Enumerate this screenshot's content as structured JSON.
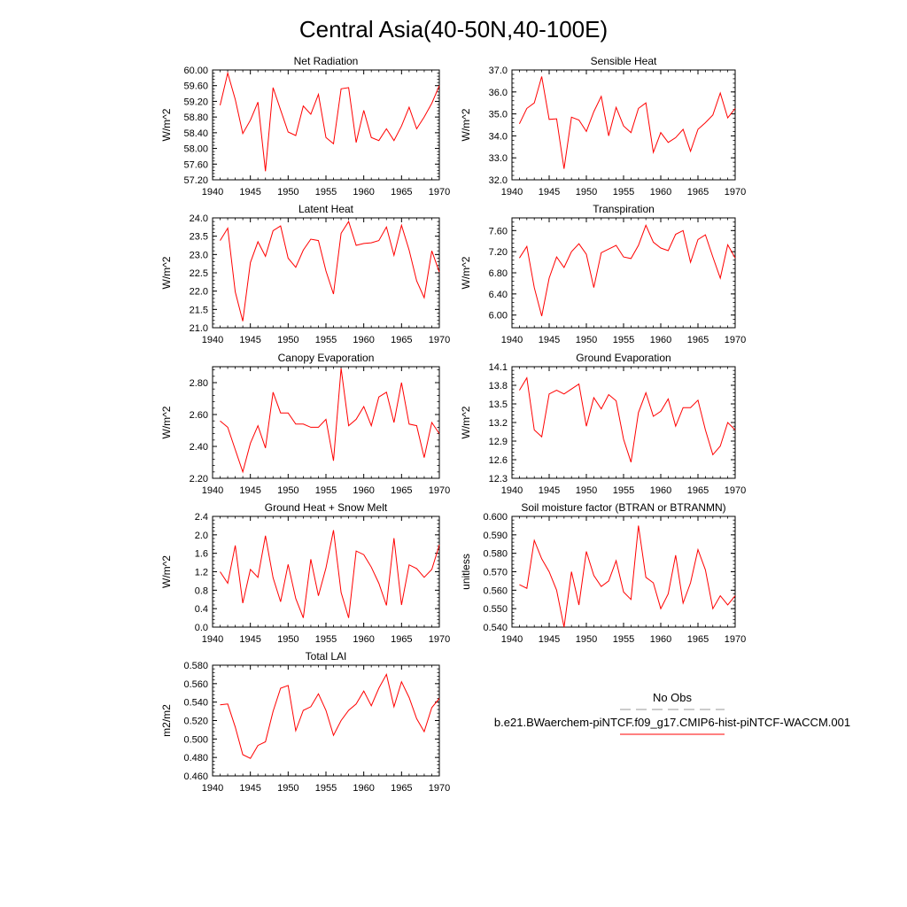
{
  "page_title": "Central Asia(40-50N,40-100E)",
  "legend": {
    "obs_label": "No Obs",
    "model_label": "b.e21.BWaerchem-piNTCF.f09_g17.CMIP6-hist-piNTCF-WACCM.001",
    "obs_color": "#999999",
    "model_color": "#ff0000"
  },
  "series_color": "#ff0000",
  "chart_data": [
    {
      "type": "line",
      "title": "Net Radiation",
      "ylabel": "W/m^2",
      "xlim": [
        1940,
        1970
      ],
      "ylim": [
        57.2,
        60.0
      ],
      "xticks": [
        "1940",
        "1945",
        "1950",
        "1955",
        "1960",
        "1965",
        "1970"
      ],
      "yticks": [
        "57.20",
        "57.60",
        "58.00",
        "58.40",
        "58.80",
        "59.20",
        "59.60",
        "60.00"
      ],
      "series": [
        {
          "x": [
            1941,
            1942,
            1943,
            1944,
            1945,
            1946,
            1947,
            1948,
            1949,
            1950,
            1951,
            1952,
            1953,
            1954,
            1955,
            1956,
            1957,
            1958,
            1959,
            1960,
            1961,
            1962,
            1963,
            1964,
            1965,
            1966,
            1967,
            1968,
            1969,
            1970
          ],
          "values": [
            59.1,
            59.92,
            59.25,
            58.38,
            58.72,
            59.18,
            57.42,
            59.55,
            58.98,
            58.42,
            58.33,
            59.08,
            58.87,
            59.38,
            58.28,
            58.12,
            59.52,
            59.55,
            58.15,
            58.97,
            58.28,
            58.2,
            58.5,
            58.2,
            58.57,
            59.05,
            58.5,
            58.8,
            59.15,
            59.6
          ]
        }
      ]
    },
    {
      "type": "line",
      "title": "Sensible Heat",
      "ylabel": "W/m^2",
      "xlim": [
        1940,
        1970
      ],
      "ylim": [
        32.0,
        37.0
      ],
      "xticks": [
        "1940",
        "1945",
        "1950",
        "1955",
        "1960",
        "1965",
        "1970"
      ],
      "yticks": [
        "32.0",
        "33.0",
        "34.0",
        "35.0",
        "36.0",
        "37.0"
      ],
      "series": [
        {
          "x": [
            1941,
            1942,
            1943,
            1944,
            1945,
            1946,
            1947,
            1948,
            1949,
            1950,
            1951,
            1952,
            1953,
            1954,
            1955,
            1956,
            1957,
            1958,
            1959,
            1960,
            1961,
            1962,
            1963,
            1964,
            1965,
            1966,
            1967,
            1968,
            1969,
            1970
          ],
          "values": [
            34.55,
            35.25,
            35.5,
            36.7,
            34.75,
            34.78,
            32.5,
            34.85,
            34.72,
            34.2,
            35.1,
            35.8,
            34.0,
            35.3,
            34.45,
            34.15,
            35.25,
            35.5,
            33.25,
            34.15,
            33.7,
            33.92,
            34.3,
            33.3,
            34.3,
            34.6,
            34.95,
            35.95,
            34.82,
            35.25
          ]
        }
      ]
    },
    {
      "type": "line",
      "title": "Latent Heat",
      "ylabel": "W/m^2",
      "xlim": [
        1940,
        1970
      ],
      "ylim": [
        21.0,
        24.0
      ],
      "xticks": [
        "1940",
        "1945",
        "1950",
        "1955",
        "1960",
        "1965",
        "1970"
      ],
      "yticks": [
        "21.0",
        "21.5",
        "22.0",
        "22.5",
        "23.0",
        "23.5",
        "24.0"
      ],
      "series": [
        {
          "x": [
            1941,
            1942,
            1943,
            1944,
            1945,
            1946,
            1947,
            1948,
            1949,
            1950,
            1951,
            1952,
            1953,
            1954,
            1955,
            1956,
            1957,
            1958,
            1959,
            1960,
            1961,
            1962,
            1963,
            1964,
            1965,
            1966,
            1967,
            1968,
            1969,
            1970
          ],
          "values": [
            23.38,
            23.72,
            21.98,
            21.18,
            22.78,
            23.35,
            22.95,
            23.65,
            23.78,
            22.9,
            22.65,
            23.12,
            23.42,
            23.38,
            22.55,
            21.92,
            23.58,
            23.9,
            23.25,
            23.3,
            23.32,
            23.38,
            23.75,
            22.98,
            23.8,
            23.12,
            22.28,
            21.82,
            23.1,
            22.52
          ]
        }
      ]
    },
    {
      "type": "line",
      "title": "Transpiration",
      "ylabel": "W/m^2",
      "xlim": [
        1940,
        1970
      ],
      "ylim": [
        5.76,
        7.84
      ],
      "xticks": [
        "1940",
        "1945",
        "1950",
        "1955",
        "1960",
        "1965",
        "1970"
      ],
      "yticks": [
        "6.00",
        "6.40",
        "6.80",
        "7.20",
        "7.60"
      ],
      "series": [
        {
          "x": [
            1941,
            1942,
            1943,
            1944,
            1945,
            1946,
            1947,
            1948,
            1949,
            1950,
            1951,
            1952,
            1953,
            1954,
            1955,
            1956,
            1957,
            1958,
            1959,
            1960,
            1961,
            1962,
            1963,
            1964,
            1965,
            1966,
            1967,
            1968,
            1969,
            1970
          ],
          "values": [
            7.08,
            7.3,
            6.52,
            5.98,
            6.7,
            7.1,
            6.9,
            7.2,
            7.35,
            7.15,
            6.52,
            7.18,
            7.25,
            7.32,
            7.1,
            7.07,
            7.32,
            7.7,
            7.38,
            7.27,
            7.22,
            7.53,
            7.6,
            7.0,
            7.43,
            7.52,
            7.1,
            6.7,
            7.33,
            7.08
          ]
        }
      ]
    },
    {
      "type": "line",
      "title": "Canopy Evaporation",
      "ylabel": "W/m^2",
      "xlim": [
        1940,
        1970
      ],
      "ylim": [
        2.2,
        2.9
      ],
      "xticks": [
        "1940",
        "1945",
        "1950",
        "1955",
        "1960",
        "1965",
        "1970"
      ],
      "yticks": [
        "2.20",
        "2.40",
        "2.60",
        "2.80"
      ],
      "series": [
        {
          "x": [
            1941,
            1942,
            1943,
            1944,
            1945,
            1946,
            1947,
            1948,
            1949,
            1950,
            1951,
            1952,
            1953,
            1954,
            1955,
            1956,
            1957,
            1958,
            1959,
            1960,
            1961,
            1962,
            1963,
            1964,
            1965,
            1966,
            1967,
            1968,
            1969,
            1970
          ],
          "values": [
            2.56,
            2.52,
            2.38,
            2.24,
            2.42,
            2.53,
            2.39,
            2.74,
            2.61,
            2.61,
            2.54,
            2.54,
            2.52,
            2.52,
            2.57,
            2.31,
            2.89,
            2.53,
            2.57,
            2.65,
            2.53,
            2.71,
            2.74,
            2.55,
            2.8,
            2.54,
            2.53,
            2.33,
            2.55,
            2.48
          ]
        }
      ]
    },
    {
      "type": "line",
      "title": "Ground Evaporation",
      "ylabel": "W/m^2",
      "xlim": [
        1940,
        1970
      ],
      "ylim": [
        12.3,
        14.1
      ],
      "xticks": [
        "1940",
        "1945",
        "1950",
        "1955",
        "1960",
        "1965",
        "1970"
      ],
      "yticks": [
        "12.3",
        "12.6",
        "12.9",
        "13.2",
        "13.5",
        "13.8",
        "14.1"
      ],
      "series": [
        {
          "x": [
            1941,
            1942,
            1943,
            1944,
            1945,
            1946,
            1947,
            1948,
            1949,
            1950,
            1951,
            1952,
            1953,
            1954,
            1955,
            1956,
            1957,
            1958,
            1959,
            1960,
            1961,
            1962,
            1963,
            1964,
            1965,
            1966,
            1967,
            1968,
            1969,
            1970
          ],
          "values": [
            13.72,
            13.92,
            13.08,
            12.97,
            13.66,
            13.72,
            13.66,
            13.74,
            13.82,
            13.14,
            13.6,
            13.42,
            13.65,
            13.55,
            12.93,
            12.56,
            13.36,
            13.68,
            13.3,
            13.38,
            13.58,
            13.14,
            13.44,
            13.44,
            13.56,
            13.08,
            12.68,
            12.82,
            13.2,
            13.08
          ]
        }
      ]
    },
    {
      "type": "line",
      "title": "Ground Heat + Snow Melt",
      "ylabel": "W/m^2",
      "xlim": [
        1940,
        1970
      ],
      "ylim": [
        0.0,
        2.4
      ],
      "xticks": [
        "1940",
        "1945",
        "1950",
        "1955",
        "1960",
        "1965",
        "1970"
      ],
      "yticks": [
        "0.0",
        "0.4",
        "0.8",
        "1.2",
        "1.6",
        "2.0",
        "2.4"
      ],
      "series": [
        {
          "x": [
            1941,
            1942,
            1943,
            1944,
            1945,
            1946,
            1947,
            1948,
            1949,
            1950,
            1951,
            1952,
            1953,
            1954,
            1955,
            1956,
            1957,
            1958,
            1959,
            1960,
            1961,
            1962,
            1963,
            1964,
            1965,
            1966,
            1967,
            1968,
            1969,
            1970
          ],
          "values": [
            1.2,
            0.95,
            1.77,
            0.52,
            1.25,
            1.08,
            1.98,
            1.07,
            0.55,
            1.36,
            0.62,
            0.2,
            1.47,
            0.68,
            1.28,
            2.1,
            0.75,
            0.2,
            1.65,
            1.57,
            1.3,
            0.95,
            0.47,
            1.93,
            0.48,
            1.35,
            1.27,
            1.08,
            1.25,
            1.78
          ]
        }
      ]
    },
    {
      "type": "line",
      "title": "Soil moisture factor (BTRAN or BTRANMN)",
      "ylabel": "unitless",
      "xlim": [
        1940,
        1970
      ],
      "ylim": [
        0.54,
        0.6
      ],
      "xticks": [
        "1940",
        "1945",
        "1950",
        "1955",
        "1960",
        "1965",
        "1970"
      ],
      "yticks": [
        "0.540",
        "0.550",
        "0.560",
        "0.570",
        "0.580",
        "0.590",
        "0.600"
      ],
      "series": [
        {
          "x": [
            1941,
            1942,
            1943,
            1944,
            1945,
            1946,
            1947,
            1948,
            1949,
            1950,
            1951,
            1952,
            1953,
            1954,
            1955,
            1956,
            1957,
            1958,
            1959,
            1960,
            1961,
            1962,
            1963,
            1964,
            1965,
            1966,
            1967,
            1968,
            1969,
            1970
          ],
          "values": [
            0.563,
            0.561,
            0.587,
            0.577,
            0.57,
            0.56,
            0.54,
            0.57,
            0.552,
            0.581,
            0.568,
            0.562,
            0.565,
            0.576,
            0.559,
            0.555,
            0.595,
            0.567,
            0.564,
            0.55,
            0.558,
            0.579,
            0.553,
            0.564,
            0.582,
            0.571,
            0.55,
            0.557,
            0.552,
            0.557
          ]
        }
      ]
    },
    {
      "type": "line",
      "title": "Total LAI",
      "ylabel": "m2/m2",
      "xlim": [
        1940,
        1970
      ],
      "ylim": [
        0.46,
        0.58
      ],
      "xticks": [
        "1940",
        "1945",
        "1950",
        "1955",
        "1960",
        "1965",
        "1970"
      ],
      "yticks": [
        "0.460",
        "0.480",
        "0.500",
        "0.520",
        "0.540",
        "0.560",
        "0.580"
      ],
      "series": [
        {
          "x": [
            1941,
            1942,
            1943,
            1944,
            1945,
            1946,
            1947,
            1948,
            1949,
            1950,
            1951,
            1952,
            1953,
            1954,
            1955,
            1956,
            1957,
            1958,
            1959,
            1960,
            1961,
            1962,
            1963,
            1964,
            1965,
            1966,
            1967,
            1968,
            1969,
            1970
          ],
          "values": [
            0.537,
            0.538,
            0.513,
            0.483,
            0.479,
            0.493,
            0.497,
            0.53,
            0.555,
            0.558,
            0.509,
            0.531,
            0.535,
            0.549,
            0.531,
            0.504,
            0.52,
            0.531,
            0.538,
            0.552,
            0.536,
            0.555,
            0.57,
            0.535,
            0.562,
            0.545,
            0.522,
            0.508,
            0.534,
            0.544
          ]
        }
      ]
    }
  ]
}
